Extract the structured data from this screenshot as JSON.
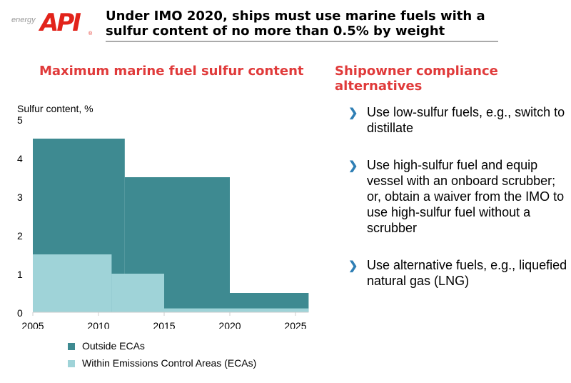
{
  "header": {
    "logo_text": "API",
    "logo_tagline": "energy",
    "title": "Under IMO 2020, ships must use marine fuels with a sulfur content of no more than 0.5% by weight"
  },
  "left_heading": "Maximum marine fuel sulfur content",
  "right_heading": "Shipowner compliance alternatives",
  "bullets": [
    "Use low-sulfur fuels, e.g., switch to distillate",
    "Use high-sulfur fuel and equip vessel with an onboard scrubber; or, obtain a waiver from the IMO to use high-sulfur fuel without a scrubber",
    "Use alternative fuels, e.g., liquefied natural gas (LNG)"
  ],
  "colors": {
    "outside": "#3e8a91",
    "within": "#9fd3d8",
    "heading": "#e03a3a"
  },
  "chart_data": {
    "type": "area",
    "ylabel": "Sulfur content, %",
    "ylim": [
      0,
      5
    ],
    "xlim": [
      2005,
      2026
    ],
    "yticks": [
      "0",
      "1",
      "2",
      "3",
      "4",
      "5"
    ],
    "xticks": [
      "2005",
      "2010",
      "2015",
      "2020",
      "2025"
    ],
    "legend_position": "bottom",
    "series": [
      {
        "name": "Outside ECAs",
        "steps": [
          {
            "from": 2005,
            "to": 2012,
            "value": 4.5
          },
          {
            "from": 2012,
            "to": 2020,
            "value": 3.5
          },
          {
            "from": 2020,
            "to": 2026,
            "value": 0.5
          }
        ]
      },
      {
        "name": "Within Emissions Control Areas (ECAs)",
        "steps": [
          {
            "from": 2005,
            "to": 2011,
            "value": 1.5
          },
          {
            "from": 2011,
            "to": 2015,
            "value": 1.0
          },
          {
            "from": 2015,
            "to": 2026,
            "value": 0.1
          }
        ]
      }
    ]
  }
}
